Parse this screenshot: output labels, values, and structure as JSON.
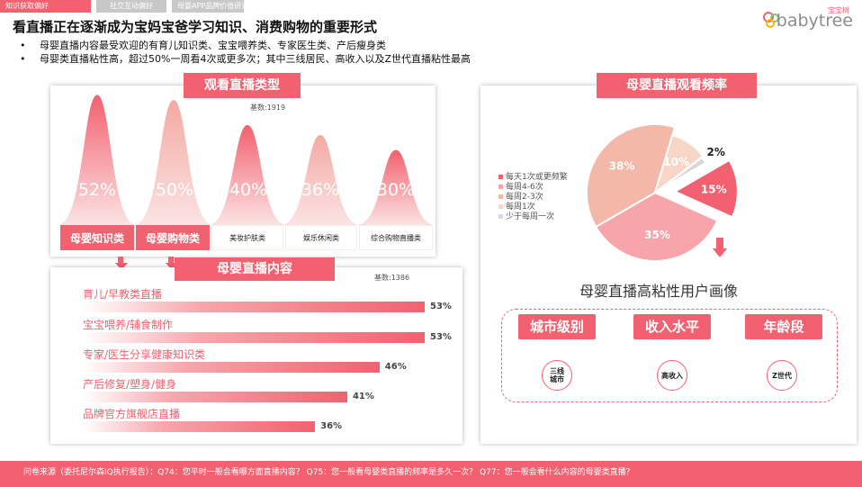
{
  "tabs": [
    "知识获取偏好",
    "社交互动偏好",
    "母婴APP品牌价值研究"
  ],
  "logo": {
    "sub": "宝宝树",
    "text": "babytree"
  },
  "title": "看直播正在逐渐成为宝妈宝爸学习知识、消费购物的重要形式",
  "bullets": [
    "母婴直播内容最受欢迎的有育儿知识类、宝宝喂养类、专家医生类、产后瘦身类",
    "母婴类直播粘性高，超过50%一周看4次或更多次；其中三线居民、高收入以及Z世代直播粘性最高"
  ],
  "colors": {
    "accent": "#f2616f",
    "light": "#f4a9a3",
    "pale": "#f7d6c8",
    "grey": "#d8d8d8"
  },
  "chart_data": [
    {
      "type": "bar",
      "title": "观看直播类型",
      "sample": "基数:1919",
      "categories": [
        "母婴知识类",
        "母婴购物类",
        "美妆护肤类",
        "娱乐休闲类",
        "综合购物直播类"
      ],
      "values": [
        52,
        50,
        40,
        36,
        30
      ],
      "value_labels": [
        "52%",
        "50%",
        "40%",
        "36%",
        "30%"
      ],
      "highlighted": [
        true,
        true,
        false,
        false,
        false
      ]
    },
    {
      "type": "bar",
      "title": "母婴直播内容",
      "sample": "基数:1386",
      "categories": [
        "育儿/早教类直播",
        "宝宝喂养/辅食制作",
        "专家/医生分享健康知识类",
        "产后修复/塑身/健身",
        "品牌官方旗舰店直播"
      ],
      "values": [
        53,
        53,
        46,
        41,
        36
      ],
      "value_labels": [
        "53%",
        "53%",
        "46%",
        "41%",
        "36%"
      ]
    },
    {
      "type": "pie",
      "title": "母婴直播观看频率",
      "categories": [
        "每天1次或更频繁",
        "每周4-6次",
        "每周2-3次",
        "每周1次",
        "少于每周一次"
      ],
      "values": [
        15,
        35,
        38,
        10,
        2
      ],
      "value_labels": [
        "15%",
        "35%",
        "38%",
        "10%",
        "2%"
      ],
      "colors": [
        "#f2616f",
        "#f7a5ab",
        "#f4b8a8",
        "#f7d6c8",
        "#d8d8d8"
      ],
      "exploded": [
        true,
        false,
        false,
        false,
        false
      ]
    }
  ],
  "portrait": {
    "title": "母婴直播高粘性用户画像",
    "items": [
      {
        "label": "城市级别",
        "tag": "三线\n城市"
      },
      {
        "label": "收入水平",
        "tag": "高收入"
      },
      {
        "label": "年龄段",
        "tag": "Z世代"
      }
    ]
  },
  "footer": "问卷来源（委托尼尔森IQ执行报告）：Q74：您平时一般会看哪方面直播内容？ Q75：您一般看母婴类直播的频率是多久一次？ Q77：您一般会看什么内容的母婴类直播？"
}
